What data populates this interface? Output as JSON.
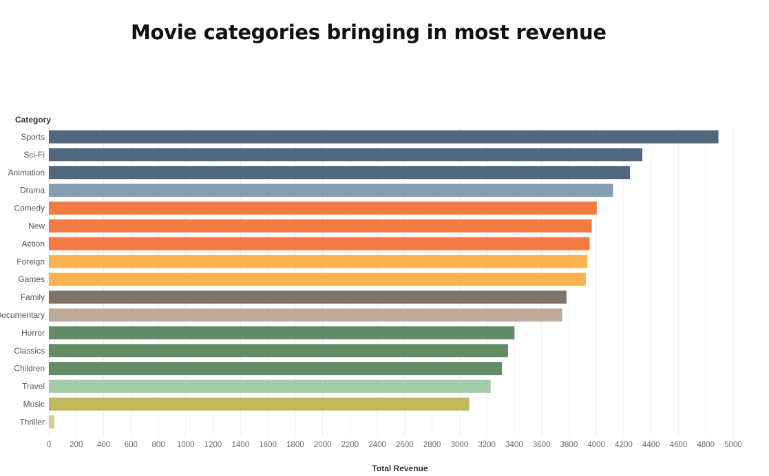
{
  "chart_data": {
    "type": "bar",
    "orientation": "horizontal",
    "title": "Movie categories bringing in most revenue",
    "ylabel": "Category",
    "xlabel": "Total Revenue",
    "xlim": [
      0,
      5000
    ],
    "xticks": [
      0,
      200,
      400,
      600,
      800,
      1000,
      1200,
      1400,
      1600,
      1800,
      2000,
      2200,
      2400,
      2600,
      2800,
      3000,
      3200,
      3400,
      3600,
      3800,
      4000,
      4200,
      4400,
      4600,
      4800,
      5000
    ],
    "grid": "vertical",
    "categories": [
      "Sports",
      "Sci-Fi",
      "Animation",
      "Drama",
      "Comedy",
      "New",
      "Action",
      "Foreign",
      "Games",
      "Family",
      "Documentary",
      "Horror",
      "Classics",
      "Children",
      "Travel",
      "Music",
      "Thriller"
    ],
    "values": [
      4892,
      4336,
      4246,
      4122,
      4003,
      3967,
      3951,
      3935,
      3923,
      3782,
      3750,
      3402,
      3355,
      3310,
      3228,
      3071,
      40
    ],
    "colors": [
      "#51677d",
      "#51677d",
      "#51677d",
      "#849bb0",
      "#f47a43",
      "#f47a43",
      "#f47a43",
      "#fbb352",
      "#fbb352",
      "#7d7368",
      "#bbab98",
      "#628b66",
      "#628b66",
      "#628b66",
      "#a2cdaa",
      "#bfb85d",
      "#d9c898"
    ]
  }
}
